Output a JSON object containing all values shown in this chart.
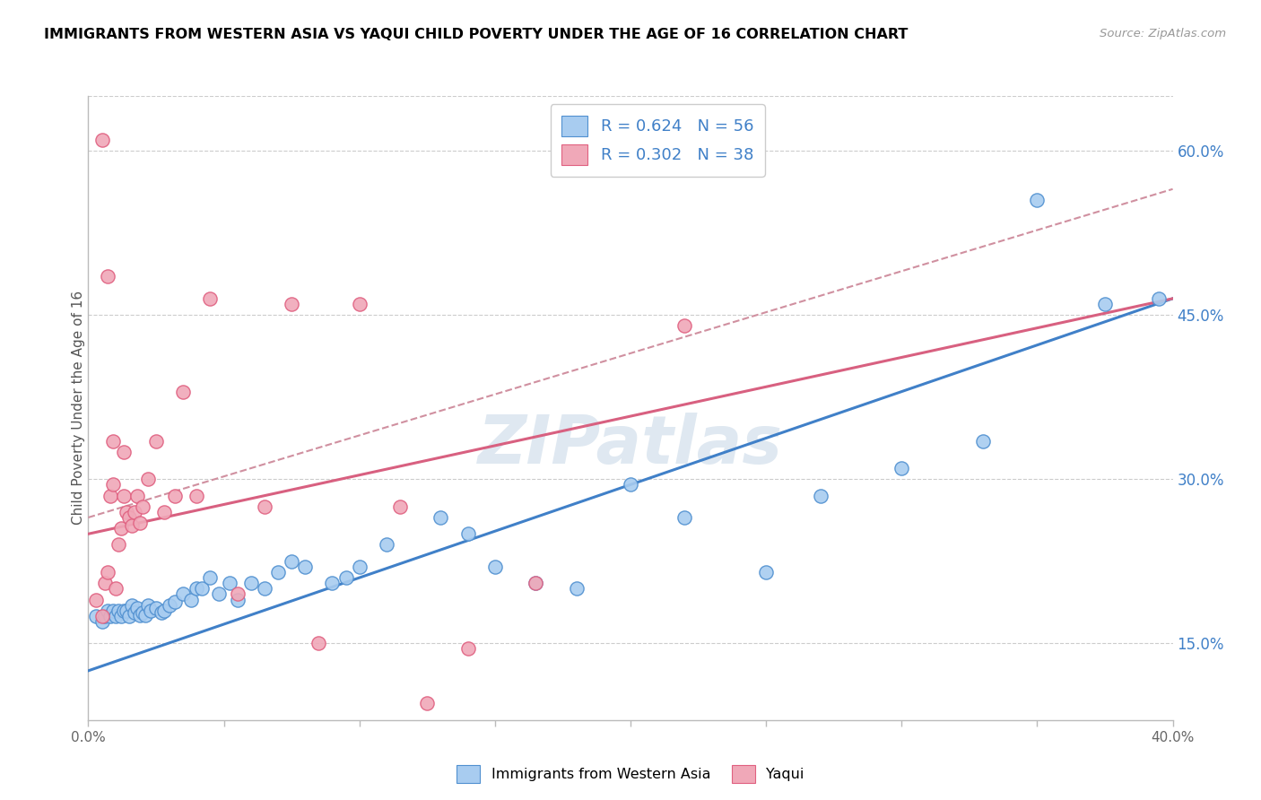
{
  "title": "IMMIGRANTS FROM WESTERN ASIA VS YAQUI CHILD POVERTY UNDER THE AGE OF 16 CORRELATION CHART",
  "source": "Source: ZipAtlas.com",
  "ylabel": "Child Poverty Under the Age of 16",
  "xlim": [
    0.0,
    0.4
  ],
  "ylim": [
    0.08,
    0.65
  ],
  "x_ticks": [
    0.0,
    0.05,
    0.1,
    0.15,
    0.2,
    0.25,
    0.3,
    0.35,
    0.4
  ],
  "x_tick_labels": [
    "0.0%",
    "",
    "",
    "",
    "",
    "",
    "",
    "",
    "40.0%"
  ],
  "y_ticks_right": [
    0.15,
    0.3,
    0.45,
    0.6
  ],
  "y_tick_labels_right": [
    "15.0%",
    "30.0%",
    "45.0%",
    "60.0%"
  ],
  "legend_r1": "R = 0.624",
  "legend_n1": "N = 56",
  "legend_r2": "R = 0.302",
  "legend_n2": "N = 38",
  "blue_color": "#A8CCF0",
  "pink_color": "#F0A8B8",
  "blue_edge_color": "#5090D0",
  "pink_edge_color": "#E06080",
  "blue_line_color": "#4080C8",
  "pink_line_color": "#D86080",
  "dashed_line_color": "#D090A0",
  "text_blue": "#4080C8",
  "watermark": "ZIPatlas",
  "blue_scatter_x": [
    0.003,
    0.005,
    0.006,
    0.007,
    0.008,
    0.009,
    0.01,
    0.011,
    0.012,
    0.013,
    0.014,
    0.015,
    0.016,
    0.017,
    0.018,
    0.019,
    0.02,
    0.021,
    0.022,
    0.023,
    0.025,
    0.027,
    0.028,
    0.03,
    0.032,
    0.035,
    0.038,
    0.04,
    0.042,
    0.045,
    0.048,
    0.052,
    0.055,
    0.06,
    0.065,
    0.07,
    0.075,
    0.08,
    0.09,
    0.095,
    0.1,
    0.11,
    0.13,
    0.14,
    0.15,
    0.165,
    0.18,
    0.2,
    0.22,
    0.25,
    0.27,
    0.3,
    0.33,
    0.35,
    0.375,
    0.395
  ],
  "blue_scatter_y": [
    0.175,
    0.17,
    0.175,
    0.18,
    0.175,
    0.18,
    0.175,
    0.18,
    0.175,
    0.18,
    0.18,
    0.175,
    0.185,
    0.178,
    0.182,
    0.176,
    0.178,
    0.176,
    0.185,
    0.18,
    0.182,
    0.178,
    0.18,
    0.185,
    0.188,
    0.195,
    0.19,
    0.2,
    0.2,
    0.21,
    0.195,
    0.205,
    0.19,
    0.205,
    0.2,
    0.215,
    0.225,
    0.22,
    0.205,
    0.21,
    0.22,
    0.24,
    0.265,
    0.25,
    0.22,
    0.205,
    0.2,
    0.295,
    0.265,
    0.215,
    0.285,
    0.31,
    0.335,
    0.555,
    0.46,
    0.465
  ],
  "pink_scatter_x": [
    0.003,
    0.005,
    0.006,
    0.007,
    0.008,
    0.009,
    0.01,
    0.011,
    0.012,
    0.013,
    0.014,
    0.015,
    0.016,
    0.017,
    0.018,
    0.019,
    0.02,
    0.022,
    0.025,
    0.028,
    0.032,
    0.035,
    0.04,
    0.045,
    0.055,
    0.065,
    0.075,
    0.085,
    0.1,
    0.115,
    0.125,
    0.14,
    0.165,
    0.22,
    0.005,
    0.007,
    0.009,
    0.013
  ],
  "pink_scatter_y": [
    0.19,
    0.175,
    0.205,
    0.215,
    0.285,
    0.295,
    0.2,
    0.24,
    0.255,
    0.285,
    0.27,
    0.265,
    0.258,
    0.27,
    0.285,
    0.26,
    0.275,
    0.3,
    0.335,
    0.27,
    0.285,
    0.38,
    0.285,
    0.465,
    0.195,
    0.275,
    0.46,
    0.15,
    0.46,
    0.275,
    0.095,
    0.145,
    0.205,
    0.44,
    0.61,
    0.485,
    0.335,
    0.325
  ],
  "blue_trendline_x": [
    0.0,
    0.4
  ],
  "blue_trendline_y": [
    0.125,
    0.465
  ],
  "pink_trendline_x": [
    0.0,
    0.4
  ],
  "pink_trendline_y": [
    0.25,
    0.465
  ],
  "dashed_trendline_x": [
    0.0,
    0.4
  ],
  "dashed_trendline_y": [
    0.265,
    0.565
  ]
}
